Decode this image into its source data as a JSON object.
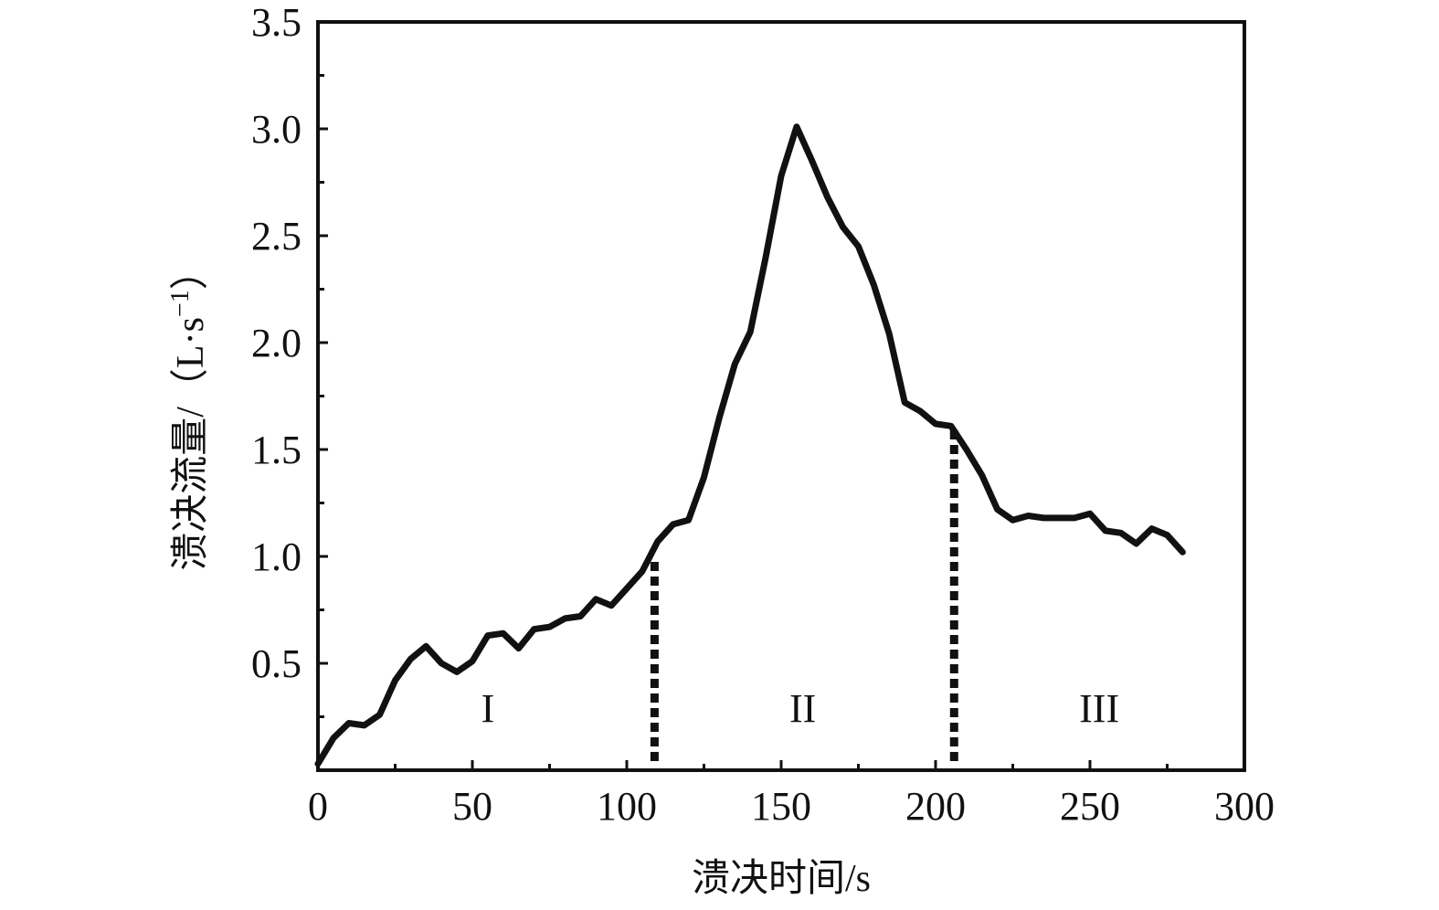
{
  "chart_data": {
    "type": "line",
    "title": "",
    "xlabel": "溃决时间/s",
    "ylabel": "溃决流量/（L·s",
    "ylabel_superscript": "−1",
    "ylabel_close": "）",
    "xlim": [
      0,
      300
    ],
    "ylim": [
      0,
      3.5
    ],
    "x_ticks": [
      0,
      50,
      100,
      150,
      200,
      250,
      300
    ],
    "x_tick_labels": [
      "0",
      "50",
      "100",
      "150",
      "200",
      "250",
      "300"
    ],
    "y_ticks": [
      0.5,
      1.0,
      1.5,
      2.0,
      2.5,
      3.0,
      3.5
    ],
    "y_tick_labels": [
      "0.5",
      "1.0",
      "1.5",
      "2.0",
      "2.5",
      "3.0",
      "3.5"
    ],
    "grid": false,
    "legend": "none",
    "color": "#111111",
    "series": [
      {
        "x": [
          0,
          5,
          10,
          15,
          20,
          25,
          30,
          35,
          40,
          45,
          50,
          55,
          60,
          65,
          70,
          75,
          80,
          85,
          90,
          95,
          100,
          105,
          110,
          115,
          120,
          125,
          130,
          135,
          140,
          145,
          150,
          155,
          160,
          165,
          170,
          175,
          180,
          185,
          190,
          195,
          200,
          205,
          210,
          215,
          220,
          225,
          230,
          235,
          240,
          245,
          250,
          255,
          260,
          265,
          270,
          275,
          280
        ],
        "y": [
          0.03,
          0.15,
          0.22,
          0.21,
          0.26,
          0.42,
          0.52,
          0.58,
          0.5,
          0.46,
          0.51,
          0.63,
          0.64,
          0.57,
          0.66,
          0.67,
          0.71,
          0.72,
          0.8,
          0.77,
          0.85,
          0.93,
          1.07,
          1.15,
          1.17,
          1.37,
          1.65,
          1.9,
          2.05,
          2.4,
          2.78,
          3.01,
          2.85,
          2.68,
          2.54,
          2.45,
          2.27,
          2.04,
          1.72,
          1.68,
          1.62,
          1.61,
          1.5,
          1.38,
          1.22,
          1.17,
          1.19,
          1.18,
          1.18,
          1.18,
          1.2,
          1.12,
          1.11,
          1.06,
          1.13,
          1.1,
          1.02
        ]
      }
    ],
    "stage_boundaries": [
      {
        "x": 109,
        "y_top": 1.0
      },
      {
        "x": 206,
        "y_top": 1.59
      }
    ],
    "stages": [
      {
        "label": "I",
        "x": 55,
        "y": 0.29
      },
      {
        "label": "II",
        "x": 157,
        "y": 0.29
      },
      {
        "label": "III",
        "x": 253,
        "y": 0.29
      }
    ]
  }
}
